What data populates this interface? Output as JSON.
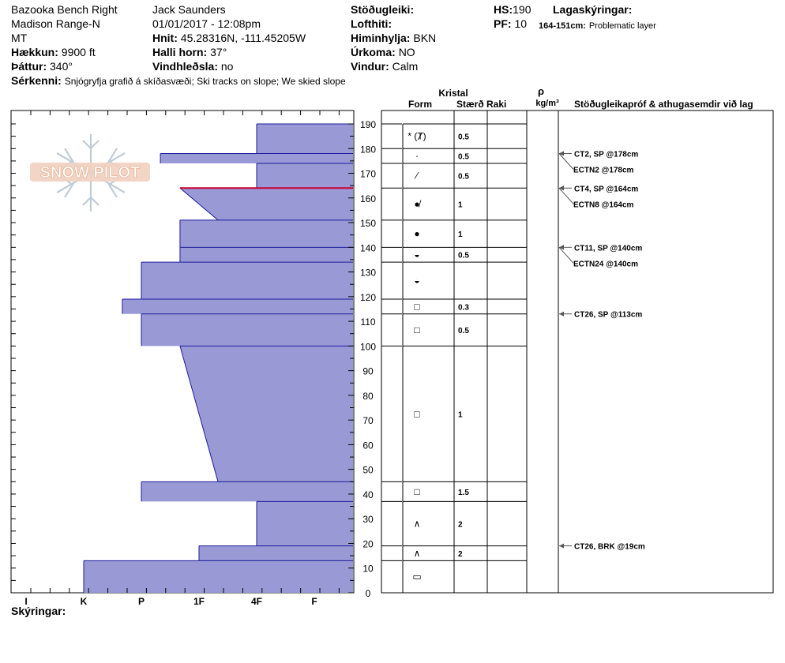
{
  "header": {
    "location": "Bazooka Bench Right",
    "range": "Madison Range-N",
    "state": "MT",
    "elevation_label": "Hækkun:",
    "elevation": "9900 ft",
    "aspect_label": "Þáttur:",
    "aspect": "340°",
    "observer": "Jack Saunders",
    "datetime": "01/01/2017 - 12:08pm",
    "coords_label": "Hnit:",
    "coords": "45.28316N, -111.45205W",
    "slope_label": "Halli horn:",
    "slope": "37°",
    "wind_loading_label": "Vindhleðsla:",
    "wind_loading": "no",
    "stability_label": "Stöðugleiki:",
    "stability": "",
    "air_temp_label": "Lofthiti:",
    "air_temp": "",
    "sky_label": "Himinhylja:",
    "sky": "BKN",
    "precip_label": "Úrkoma:",
    "precip": "NO",
    "wind_label": "Vindur:",
    "wind": "Calm",
    "hs_label": "HS:",
    "hs": "190",
    "pf_label": "PF:",
    "pf": "10",
    "layer_notes_label": "Lagaskýringar:",
    "layer_note_range": "164-151cm:",
    "layer_note_text": "Problematic layer",
    "features_label": "Sérkenni:",
    "features": "Snjógryfja grafið á skíðasvæði; Ski tracks on slope; We skied slope",
    "footer_label": "Skýringar:"
  },
  "columns": {
    "crystal": "Kristal",
    "form": "Form",
    "size": "Stærð",
    "moisture": "Raki",
    "rho": "ρ",
    "density_unit": "kg/m³",
    "tests": "Stöðugleikapróf & athugasemdir við lag"
  },
  "logo_text": "SNOW PILOT",
  "colors": {
    "hardness_fill": "#9999d6",
    "hardness_edge": "#1c1c9c",
    "problem_layer": "#cc0033"
  },
  "chart_data": {
    "type": "snow-profile",
    "y_axis": {
      "label": "",
      "range": [
        0,
        190
      ],
      "ticks": [
        0,
        10,
        20,
        30,
        40,
        50,
        60,
        70,
        80,
        90,
        100,
        110,
        120,
        130,
        140,
        150,
        160,
        170,
        180,
        190
      ]
    },
    "x_axis": {
      "label": "",
      "tick_labels": [
        "I",
        "K",
        "P",
        "1F",
        "4F",
        "F"
      ],
      "reverse": true
    },
    "hardness_profile": [
      {
        "top": 190,
        "bottom": 178,
        "hardness": "4F"
      },
      {
        "top": 178,
        "bottom": 174,
        "hardness": "P-"
      },
      {
        "top": 174,
        "bottom": 164,
        "hardness": "4F"
      },
      {
        "top": 164,
        "bottom": 151,
        "hardness_top": "1F+",
        "hardness_bottom": "1F-"
      },
      {
        "top": 151,
        "bottom": 140,
        "hardness": "1F+"
      },
      {
        "top": 140,
        "bottom": 134,
        "hardness": "1F+"
      },
      {
        "top": 134,
        "bottom": 119,
        "hardness": "P"
      },
      {
        "top": 119,
        "bottom": 113,
        "hardness": "P+"
      },
      {
        "top": 113,
        "bottom": 100,
        "hardness": "P"
      },
      {
        "top": 100,
        "bottom": 45,
        "hardness_top": "1F+",
        "hardness_bottom": "1F-"
      },
      {
        "top": 45,
        "bottom": 37,
        "hardness": "P"
      },
      {
        "top": 37,
        "bottom": 19,
        "hardness": "4F"
      },
      {
        "top": 19,
        "bottom": 13,
        "hardness": "1F"
      },
      {
        "top": 13,
        "bottom": 0,
        "hardness": "K"
      }
    ],
    "problem_layer": {
      "top": 164,
      "bottom": 151
    },
    "layers": [
      {
        "top": 190,
        "bottom": 180,
        "form": "* (Ⱦ)",
        "size": "0.5"
      },
      {
        "top": 180,
        "bottom": 174,
        "form": "·",
        "size": "0.5"
      },
      {
        "top": 174,
        "bottom": 164,
        "form": "⁄",
        "size": "0.5"
      },
      {
        "top": 164,
        "bottom": 151,
        "form": "●̸",
        "size": "1"
      },
      {
        "top": 151,
        "bottom": 140,
        "form": "●",
        "size": "1"
      },
      {
        "top": 140,
        "bottom": 134,
        "form": "◒",
        "size": "0.5"
      },
      {
        "top": 134,
        "bottom": 119,
        "form": "◒",
        "size": ""
      },
      {
        "top": 119,
        "bottom": 113,
        "form": "□",
        "size": "0.3"
      },
      {
        "top": 113,
        "bottom": 100,
        "form": "□",
        "size": "0.5"
      },
      {
        "top": 100,
        "bottom": 45,
        "form": "□",
        "size": "1"
      },
      {
        "top": 45,
        "bottom": 37,
        "form": "□",
        "size": "1.5"
      },
      {
        "top": 37,
        "bottom": 19,
        "form": "∧",
        "size": "2"
      },
      {
        "top": 19,
        "bottom": 13,
        "form": "∧",
        "size": "2"
      },
      {
        "top": 13,
        "bottom": 0,
        "form": "▭",
        "size": ""
      }
    ],
    "tests": [
      {
        "depth": 178,
        "text": "CT2, SP @178cm"
      },
      {
        "depth": 178,
        "text": "ECTN2 @178cm"
      },
      {
        "depth": 164,
        "text": "CT4, SP @164cm"
      },
      {
        "depth": 164,
        "text": "ECTN8 @164cm"
      },
      {
        "depth": 140,
        "text": "CT11, SP @140cm"
      },
      {
        "depth": 140,
        "text": "ECTN24 @140cm"
      },
      {
        "depth": 113,
        "text": "CT26, SP @113cm"
      },
      {
        "depth": 19,
        "text": "CT26, BRK @19cm"
      }
    ]
  }
}
